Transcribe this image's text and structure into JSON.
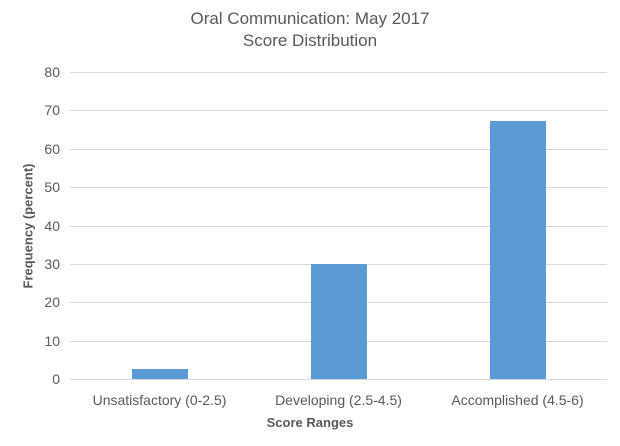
{
  "chart_data": {
    "type": "bar",
    "title": "Oral Communication: May 2017",
    "subtitle": "Score Distribution",
    "xlabel": "Score Ranges",
    "ylabel": "Frequency (percent)",
    "categories": [
      "Unsatisfactory (0-2.5)",
      "Developing (2.5-4.5)",
      "Accomplished (4.5-6)"
    ],
    "values": [
      2.6,
      30,
      67.3
    ],
    "ylim": [
      0,
      80
    ],
    "yticks": [
      "0",
      "10",
      "20",
      "30",
      "40",
      "50",
      "60",
      "70",
      "80"
    ],
    "grid": true,
    "legend": null,
    "bar_color": "#5b9bd5"
  }
}
